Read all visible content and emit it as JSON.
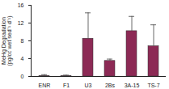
{
  "chart_data": {
    "type": "bar",
    "y_label": "MeHg Degradation\n(pg/cc wet sed⁻¹ d⁻¹)",
    "categories": [
      "ENR",
      "F1",
      "U3",
      "2Bs",
      "3A-15",
      "TS-7"
    ],
    "values": [
      0.1,
      0.1,
      8.5,
      3.5,
      10.2,
      6.8
    ],
    "error": [
      0.3,
      0.2,
      5.8,
      0.4,
      3.3,
      4.8
    ],
    "color": "#8c2a55",
    "ylim": [
      0,
      16
    ],
    "yticks": [
      0,
      4,
      8,
      12,
      16
    ],
    "grid": false
  }
}
